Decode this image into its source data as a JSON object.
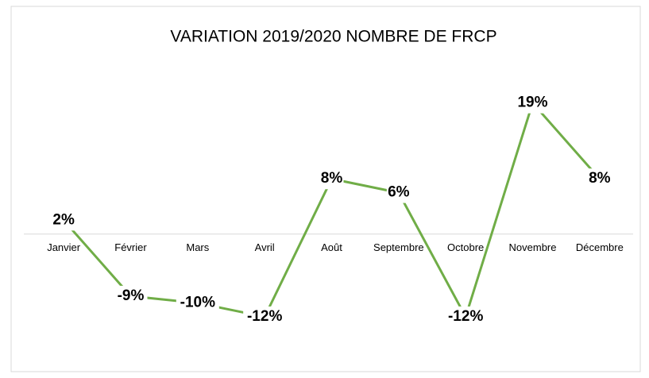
{
  "chart_data": {
    "type": "line",
    "title": "VARIATION 2019/2020 NOMBRE DE FRCP",
    "categories": [
      "Janvier",
      "Février",
      "Mars",
      "Avril",
      "Août",
      "Septembre",
      "Octobre",
      "Novembre",
      "Décembre"
    ],
    "series": [
      {
        "color": "#70ad47",
        "values": [
          2,
          -9,
          -10,
          -12,
          8,
          6,
          -12,
          19,
          8
        ],
        "value_labels": [
          "2%",
          "-9%",
          "-10%",
          "-12%",
          "8%",
          "6%",
          "-12%",
          "19%",
          "8%"
        ]
      }
    ],
    "ylim": [
      -15,
      20
    ]
  }
}
